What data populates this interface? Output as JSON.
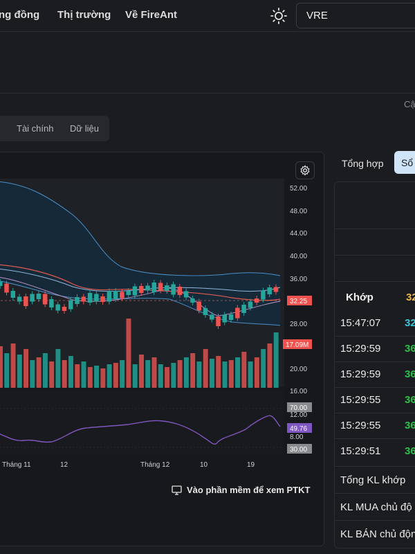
{
  "nav": {
    "item1": "ng đồng",
    "item2": "Thị trường",
    "item3": "Về FireAnt"
  },
  "search": {
    "value": "VRE"
  },
  "header": {
    "updated_label": "Cậ"
  },
  "tabs": [
    "Tài chính",
    "Dữ liệu"
  ],
  "chart": {
    "ptkt_link": "Vào phần mềm để xem PTKT",
    "price_axis": [
      "52.00",
      "48.00",
      "44.00",
      "40.00",
      "36.00",
      "32.25",
      "28.00",
      "24.00",
      "20.00",
      "16.00"
    ],
    "current_price_tag": "32.25",
    "volume_tag": "17.09M",
    "rsi_axis": [
      "70.00",
      "49.76",
      "12.00",
      "8.00",
      "30.00"
    ],
    "rsi_tag": "49.76",
    "x_ticks": [
      "Tháng 11",
      "12",
      "Tháng 12",
      "10",
      "19"
    ],
    "colors": {
      "up": "#26a69a",
      "down": "#ef5350",
      "rsi": "#7e57c2",
      "bb": "#4a90c8",
      "ma": "#e05a4f"
    }
  },
  "right_tabs": {
    "summary": "Tổng hợp",
    "orderbook": "Sổ"
  },
  "order_panel": {
    "title": "Khớp",
    "pct": "32",
    "trades": [
      {
        "time": "15:47:07",
        "price": "32",
        "color": "#3dc3d8"
      },
      {
        "time": "15:29:59",
        "price": "36",
        "color": "#2fbf4a"
      },
      {
        "time": "15:29:59",
        "price": "36",
        "color": "#2fbf4a"
      },
      {
        "time": "15:29:55",
        "price": "36",
        "color": "#2fbf4a"
      },
      {
        "time": "15:29:55",
        "price": "36",
        "color": "#2fbf4a"
      },
      {
        "time": "15:29:51",
        "price": "36",
        "color": "#2fbf4a"
      }
    ],
    "summary": [
      "Tổng KL khớp",
      "KL MUA chủ độ",
      "KL BÁN chủ độn"
    ]
  }
}
